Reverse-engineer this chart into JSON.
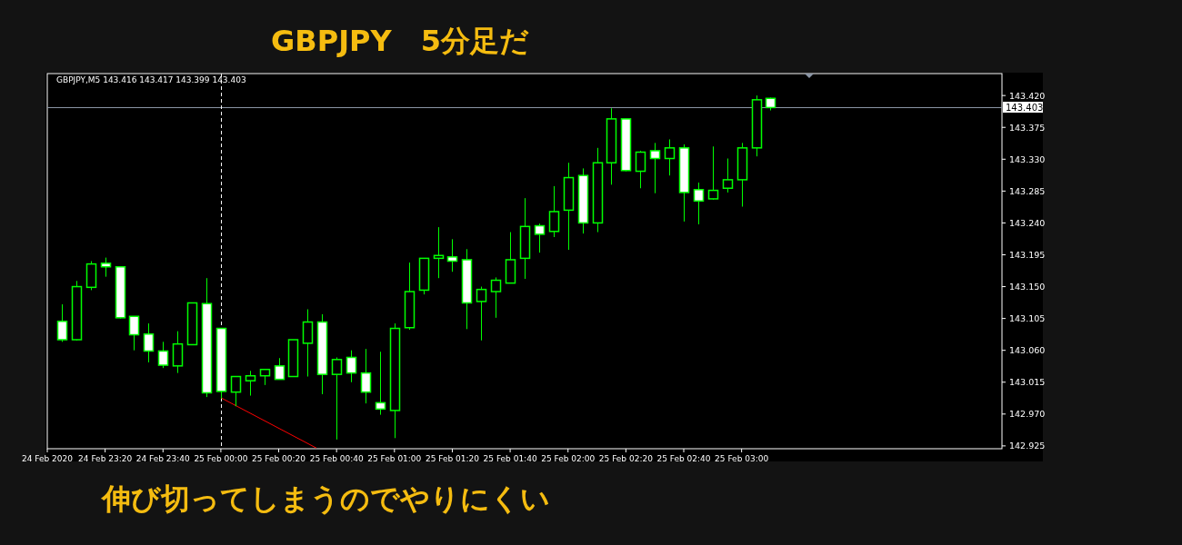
{
  "chart_data": {
    "type": "candlestick",
    "title": "GBPJPY　5分足だ",
    "color": "#00ff00",
    "annotations": [
      "GBPJPY,M5  143.416 143.417 143.399 143.403",
      "伸び切ってしまうのでやりにくい"
    ],
    "x": [
      "2020-02-24T23:05",
      "2020-02-24T23:10",
      "2020-02-24T23:15",
      "2020-02-24T23:20",
      "2020-02-24T23:25",
      "2020-02-24T23:30",
      "2020-02-24T23:35",
      "2020-02-24T23:40",
      "2020-02-24T23:45",
      "2020-02-24T23:50",
      "2020-02-24T23:55",
      "2020-02-25T00:00",
      "2020-02-25T00:05",
      "2020-02-25T00:10",
      "2020-02-25T00:15",
      "2020-02-25T00:20",
      "2020-02-25T00:25",
      "2020-02-25T00:30",
      "2020-02-25T00:35",
      "2020-02-25T00:40",
      "2020-02-25T00:45",
      "2020-02-25T00:50",
      "2020-02-25T00:55",
      "2020-02-25T01:00",
      "2020-02-25T01:05",
      "2020-02-25T01:10",
      "2020-02-25T01:15",
      "2020-02-25T01:20",
      "2020-02-25T01:25",
      "2020-02-25T01:30",
      "2020-02-25T01:35",
      "2020-02-25T01:40",
      "2020-02-25T01:45",
      "2020-02-25T01:50",
      "2020-02-25T01:55",
      "2020-02-25T02:00",
      "2020-02-25T02:05",
      "2020-02-25T02:10",
      "2020-02-25T02:15",
      "2020-02-25T02:20",
      "2020-02-25T02:25",
      "2020-02-25T02:30",
      "2020-02-25T02:35",
      "2020-02-25T02:40",
      "2020-02-25T02:45",
      "2020-02-25T02:50",
      "2020-02-25T02:55",
      "2020-02-25T03:00",
      "2020-02-25T03:05",
      "2020-02-25T03:10"
    ],
    "ohlc": [
      [
        143.101,
        143.125,
        143.072,
        143.075
      ],
      [
        143.075,
        143.158,
        143.074,
        143.15
      ],
      [
        143.149,
        143.186,
        143.145,
        143.182
      ],
      [
        143.183,
        143.191,
        143.164,
        143.178
      ],
      [
        143.178,
        143.178,
        143.105,
        143.106
      ],
      [
        143.108,
        143.108,
        143.06,
        143.082
      ],
      [
        143.083,
        143.098,
        143.043,
        143.059
      ],
      [
        143.059,
        143.072,
        143.035,
        143.039
      ],
      [
        143.038,
        143.087,
        143.028,
        143.069
      ],
      [
        143.068,
        143.127,
        143.068,
        143.127
      ],
      [
        143.126,
        143.162,
        142.994,
        143.0
      ],
      [
        143.091,
        143.091,
        142.992,
        143.002
      ],
      [
        143.001,
        143.023,
        142.981,
        143.023
      ],
      [
        143.017,
        143.031,
        142.996,
        143.024
      ],
      [
        143.024,
        143.033,
        143.011,
        143.033
      ],
      [
        143.038,
        143.049,
        143.019,
        143.019
      ],
      [
        143.023,
        143.075,
        143.023,
        143.075
      ],
      [
        143.07,
        143.118,
        143.023,
        143.1
      ],
      [
        143.1,
        143.111,
        142.998,
        143.026
      ],
      [
        143.026,
        143.05,
        142.934,
        143.047
      ],
      [
        143.05,
        143.06,
        143.015,
        143.028
      ],
      [
        143.028,
        143.062,
        142.985,
        143.001
      ],
      [
        142.986,
        143.058,
        142.969,
        142.977
      ],
      [
        142.975,
        143.098,
        142.936,
        143.091
      ],
      [
        143.092,
        143.184,
        143.089,
        143.143
      ],
      [
        143.145,
        143.19,
        143.139,
        143.19
      ],
      [
        143.19,
        143.234,
        143.162,
        143.194
      ],
      [
        143.192,
        143.217,
        143.171,
        143.186
      ],
      [
        143.188,
        143.203,
        143.09,
        143.127
      ],
      [
        143.129,
        143.15,
        143.074,
        143.146
      ],
      [
        143.143,
        143.163,
        143.106,
        143.159
      ],
      [
        143.155,
        143.227,
        143.155,
        143.188
      ],
      [
        143.19,
        143.275,
        143.161,
        143.235
      ],
      [
        143.236,
        143.239,
        143.198,
        143.224
      ],
      [
        143.228,
        143.292,
        143.22,
        143.256
      ],
      [
        143.258,
        143.325,
        143.202,
        143.304
      ],
      [
        143.307,
        143.317,
        143.225,
        143.24
      ],
      [
        143.24,
        143.346,
        143.227,
        143.325
      ],
      [
        143.325,
        143.402,
        143.294,
        143.387
      ],
      [
        143.387,
        143.387,
        143.313,
        143.314
      ],
      [
        143.313,
        143.342,
        143.289,
        143.34
      ],
      [
        143.342,
        143.353,
        143.282,
        143.331
      ],
      [
        143.331,
        143.358,
        143.307,
        143.346
      ],
      [
        143.346,
        143.351,
        143.242,
        143.283
      ],
      [
        143.287,
        143.297,
        143.238,
        143.271
      ],
      [
        143.274,
        143.348,
        143.273,
        143.286
      ],
      [
        143.289,
        143.331,
        143.283,
        143.301
      ],
      [
        143.301,
        143.353,
        143.263,
        143.346
      ],
      [
        143.346,
        143.42,
        143.334,
        143.414
      ],
      [
        143.416,
        143.417,
        143.399,
        143.403
      ]
    ],
    "series": [
      {
        "type": "line",
        "color": "#ff0000",
        "x": [
          "2020-02-25T00:00",
          "2020-02-25T00:33"
        ],
        "values": [
          142.993,
          142.922
        ]
      }
    ],
    "xlim": [
      "2020-02-24T23:00",
      "2020-02-25T04:30"
    ],
    "xticks": [
      {
        "value": "2020-02-24T23:00",
        "label": "24 Feb 2020"
      },
      {
        "value": "2020-02-24T23:20",
        "label": "24 Feb 23:20"
      },
      {
        "value": "2020-02-24T23:40",
        "label": "24 Feb 23:40"
      },
      {
        "value": "2020-02-25T00:00",
        "label": "25 Feb 00:00"
      },
      {
        "value": "2020-02-25T00:20",
        "label": "25 Feb 00:20"
      },
      {
        "value": "2020-02-25T00:40",
        "label": "25 Feb 00:40"
      },
      {
        "value": "2020-02-25T01:00",
        "label": "25 Feb 01:00"
      },
      {
        "value": "2020-02-25T01:20",
        "label": "25 Feb 01:20"
      },
      {
        "value": "2020-02-25T01:40",
        "label": "25 Feb 01:40"
      },
      {
        "value": "2020-02-25T02:00",
        "label": "25 Feb 02:00"
      },
      {
        "value": "2020-02-25T02:20",
        "label": "25 Feb 02:20"
      },
      {
        "value": "2020-02-25T02:40",
        "label": "25 Feb 02:40"
      },
      {
        "value": "2020-02-25T03:00",
        "label": "25 Feb 03:00"
      }
    ],
    "ylim": [
      142.921,
      143.451
    ],
    "yticks": [
      {
        "value": 142.925,
        "label": "142.925"
      },
      {
        "value": 142.97,
        "label": "142.970"
      },
      {
        "value": 143.015,
        "label": "143.015"
      },
      {
        "value": 143.06,
        "label": "143.060"
      },
      {
        "value": 143.105,
        "label": "143.105"
      },
      {
        "value": 143.15,
        "label": "143.150"
      },
      {
        "value": 143.195,
        "label": "143.195"
      },
      {
        "value": 143.24,
        "label": "143.240"
      },
      {
        "value": 143.285,
        "label": "143.285"
      },
      {
        "value": 143.33,
        "label": "143.330"
      },
      {
        "value": 143.375,
        "label": "143.375"
      },
      {
        "value": 143.42,
        "label": "143.420"
      }
    ],
    "ref_lines": [
      {
        "axis": "y",
        "value": 143.403,
        "label": "143.403",
        "color": "#8a95a5",
        "line_style": "solid"
      },
      {
        "axis": "x",
        "value": "2020-02-25T00:00",
        "color": "#ffffff",
        "line_style": "dashed"
      }
    ],
    "grid": false
  }
}
